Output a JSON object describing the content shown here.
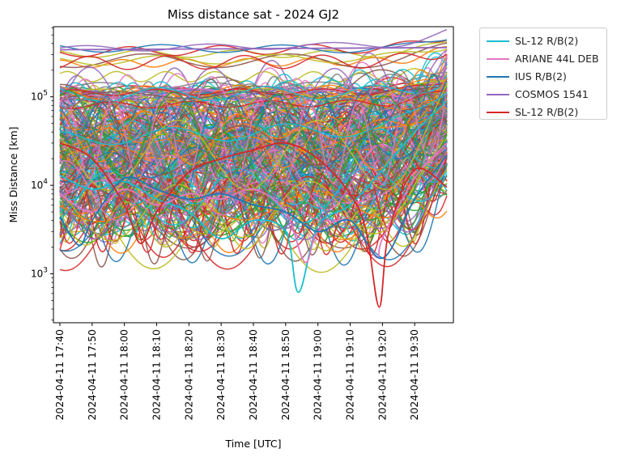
{
  "chart_data": {
    "type": "line",
    "title": "Miss distance sat - 2024 GJ2",
    "xlabel": "Time [UTC]",
    "ylabel": "Miss Distance [km]",
    "yscale": "log",
    "x_range": [
      "2024-04-11 17:38",
      "2024-04-11 19:42"
    ],
    "ylim": [
      280,
      620000
    ],
    "x_ticks": [
      "2024-04-11 17:40",
      "2024-04-11 17:50",
      "2024-04-11 18:00",
      "2024-04-11 18:10",
      "2024-04-11 18:20",
      "2024-04-11 18:30",
      "2024-04-11 18:40",
      "2024-04-11 18:50",
      "2024-04-11 19:00",
      "2024-04-11 19:10",
      "2024-04-11 19:20",
      "2024-04-11 19:30"
    ],
    "y_ticks": [
      {
        "value": 1000,
        "base": "10",
        "exp": "3"
      },
      {
        "value": 10000,
        "base": "10",
        "exp": "4"
      },
      {
        "value": 100000,
        "base": "10",
        "exp": "5"
      }
    ],
    "grid": false,
    "legend_position": "outside upper right",
    "x_start": "2024-04-11 17:40",
    "x_end": "2024-04-11 19:40",
    "series": [
      {
        "name": "SL-12 R/B(2)",
        "color": "#17becf",
        "x": [
          "17:40",
          "17:50",
          "18:00",
          "18:10",
          "18:20",
          "18:30",
          "18:40",
          "18:50",
          "18:54",
          "19:00",
          "19:10",
          "19:20",
          "19:30",
          "19:40"
        ],
        "values": [
          13000,
          9000,
          11000,
          7000,
          5000,
          2500,
          4000,
          3000,
          620,
          3500,
          6000,
          15000,
          40000,
          90000
        ]
      },
      {
        "name": "ARIANE 44L DEB",
        "color": "#e377c2",
        "x": [
          "17:40",
          "17:50",
          "18:00",
          "18:10",
          "18:20",
          "18:30",
          "18:40",
          "18:50",
          "18:56",
          "19:00",
          "19:10",
          "19:18",
          "19:20",
          "19:30",
          "19:40"
        ],
        "values": [
          8000,
          5000,
          9000,
          6000,
          8000,
          7000,
          9000,
          5000,
          1350,
          3000,
          4000,
          1550,
          2500,
          12000,
          30000
        ]
      },
      {
        "name": "IUS R/B(2)",
        "color": "#1f77b4",
        "x": [
          "17:40",
          "17:46",
          "17:50",
          "18:00",
          "18:10",
          "18:20",
          "18:30",
          "18:40",
          "18:50",
          "19:00",
          "19:10",
          "19:20",
          "19:30",
          "19:40"
        ],
        "values": [
          4400,
          2100,
          4000,
          12000,
          9000,
          7000,
          8000,
          6000,
          5000,
          3000,
          4000,
          1500,
          7000,
          22000
        ]
      },
      {
        "name": "COSMOS 1541",
        "color": "#9467bd",
        "x": [
          "17:40",
          "19:40"
        ],
        "values": [
          340000,
          360000
        ]
      },
      {
        "name": "SL-12 R/B(2)",
        "color": "#d62728",
        "x": [
          "17:40",
          "17:50",
          "18:00",
          "18:05",
          "18:10",
          "18:20",
          "18:30",
          "18:40",
          "18:50",
          "19:00",
          "19:10",
          "19:15",
          "19:19",
          "19:22",
          "19:30",
          "19:40"
        ],
        "values": [
          30000,
          20000,
          6000,
          2200,
          5000,
          14000,
          20000,
          25000,
          30000,
          20000,
          8000,
          3000,
          420,
          3000,
          15000,
          9500
        ]
      }
    ]
  }
}
